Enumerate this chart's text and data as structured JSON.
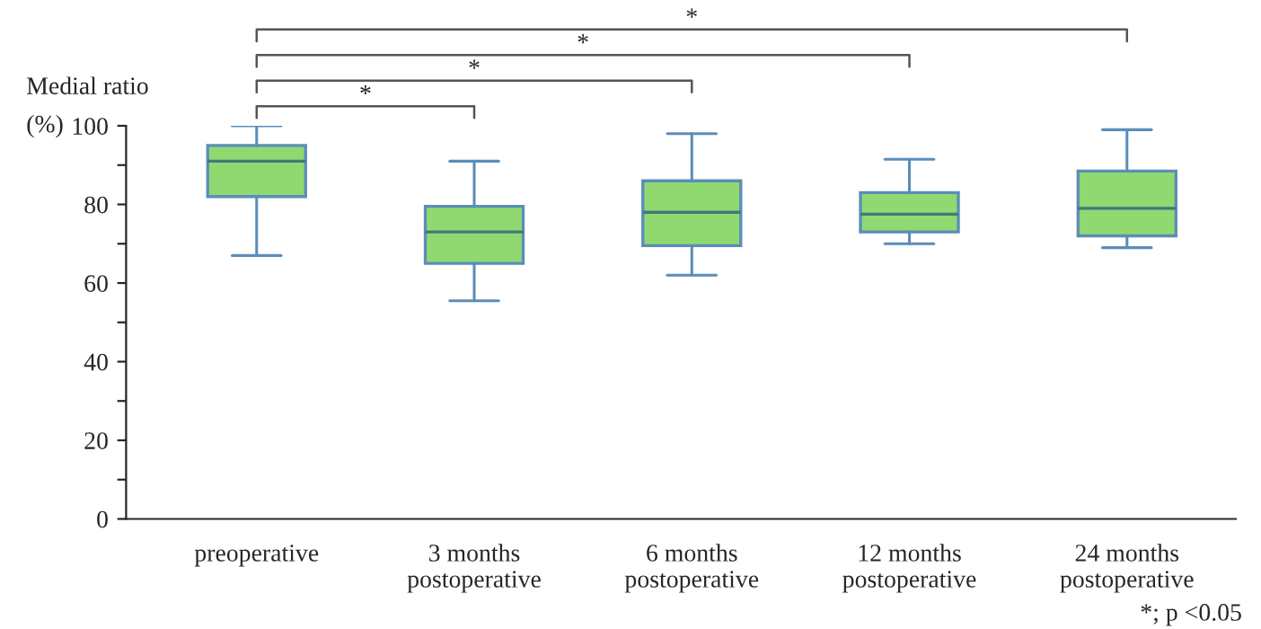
{
  "chart_data": {
    "type": "box",
    "ylabel": "Medial ratio\n(%)",
    "categories": [
      "preoperative",
      "3 months\npostoperative",
      "6 months\npostoperative",
      "12 months\npostoperative",
      "24 months\npostoperative"
    ],
    "boxes": [
      {
        "low": 67,
        "q1": 82,
        "median": 91,
        "q3": 95,
        "high": 100
      },
      {
        "low": 55.5,
        "q1": 65,
        "median": 73,
        "q3": 79.5,
        "high": 91
      },
      {
        "low": 62,
        "q1": 69.5,
        "median": 78,
        "q3": 86,
        "high": 98
      },
      {
        "low": 70,
        "q1": 73,
        "median": 77.5,
        "q3": 83,
        "high": 91.5
      },
      {
        "low": 69,
        "q1": 72,
        "median": 79,
        "q3": 88.5,
        "high": 99
      }
    ],
    "color": "#8fd970",
    "ylim": [
      0,
      100
    ],
    "yticks": [
      0,
      {
        "value": 10,
        "label": null
      },
      20,
      {
        "value": 30,
        "label": null
      },
      40,
      {
        "value": 50,
        "label": null
      },
      60,
      {
        "value": 70,
        "label": null
      },
      80,
      {
        "value": 90,
        "label": null
      },
      100
    ],
    "annotations": [
      "*",
      "*",
      "*",
      "*",
      "*; p <0.05"
    ],
    "grid": false,
    "legend": false
  }
}
